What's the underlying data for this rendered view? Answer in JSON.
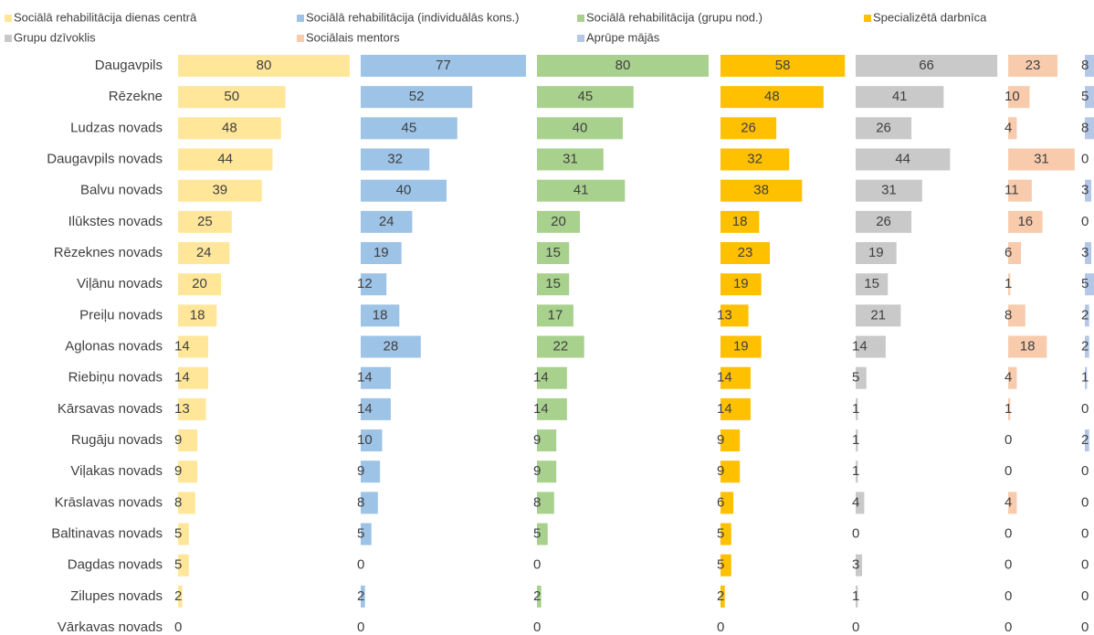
{
  "chart_data": {
    "type": "bar",
    "categories": [
      "Daugavpils",
      "Rēzekne",
      "Ludzas novads",
      "Daugavpils novads",
      "Balvu novads",
      "Ilūkstes novads",
      "Rēzeknes novads",
      "Viļānu novads",
      "Preiļu novads",
      "Aglonas novads",
      "Riebiņu novads",
      "Kārsavas novads",
      "Rugāju novads",
      "Viļakas novads",
      "Krāslavas novads",
      "Baltinavas novads",
      "Dagdas novads",
      "Zilupes novads",
      "Vārkavas novads"
    ],
    "series": [
      {
        "name": "Sociālā rehabilitācija dienas centrā",
        "color": "#ffe699",
        "values": [
          80,
          50,
          48,
          44,
          39,
          25,
          24,
          20,
          18,
          14,
          14,
          13,
          9,
          9,
          8,
          5,
          5,
          2,
          0
        ]
      },
      {
        "name": "Sociālā rehabilitācija (individuālās kons.)",
        "color": "#9dc3e6",
        "values": [
          77,
          52,
          45,
          32,
          40,
          24,
          19,
          12,
          18,
          28,
          14,
          14,
          10,
          9,
          8,
          5,
          0,
          2,
          0
        ]
      },
      {
        "name": "Sociālā rehabilitācija (grupu nod.)",
        "color": "#a9d18e",
        "values": [
          80,
          45,
          40,
          31,
          41,
          20,
          15,
          15,
          17,
          22,
          14,
          14,
          9,
          9,
          8,
          5,
          0,
          2,
          0
        ]
      },
      {
        "name": "Specializētā darbnīca",
        "color": "#ffc000",
        "values": [
          58,
          48,
          26,
          32,
          38,
          18,
          23,
          19,
          13,
          19,
          14,
          14,
          9,
          9,
          6,
          5,
          5,
          2,
          0
        ]
      },
      {
        "name": "Grupu dzīvoklis",
        "color": "#c9c9c9",
        "values": [
          66,
          41,
          26,
          44,
          31,
          26,
          19,
          15,
          21,
          14,
          5,
          1,
          1,
          1,
          4,
          0,
          3,
          1,
          0
        ]
      },
      {
        "name": "Sociālais mentors",
        "color": "#f8cbad",
        "values": [
          23,
          10,
          4,
          31,
          11,
          16,
          6,
          1,
          8,
          18,
          4,
          1,
          0,
          0,
          4,
          0,
          0,
          0,
          0
        ]
      },
      {
        "name": "Aprūpe mājās",
        "color": "#b4c7e7",
        "values": [
          8,
          5,
          8,
          0,
          3,
          0,
          3,
          5,
          2,
          2,
          1,
          0,
          2,
          0,
          0,
          0,
          0,
          0,
          0
        ]
      }
    ]
  }
}
